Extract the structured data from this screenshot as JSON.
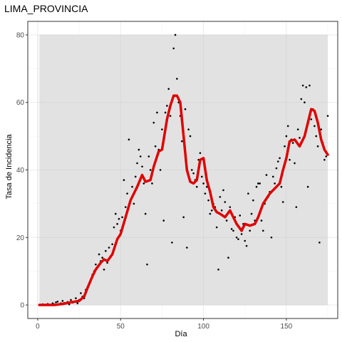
{
  "chart_data": {
    "type": "scatter",
    "title": "LIMA_PROVINCIA",
    "xlabel": "Día",
    "ylabel": "Tasa de Incidencia",
    "xlim": [
      -6,
      181
    ],
    "ylim": [
      -4,
      84
    ],
    "xticks": [
      0,
      50,
      100,
      150
    ],
    "yticks": [
      0,
      20,
      40,
      60,
      80
    ],
    "grid": true,
    "legend": "none",
    "colors": {
      "points": "#000000",
      "smooth": "#e00000",
      "band": "#e0e0e0",
      "panel_border": "#333333",
      "grid": "#ebebeb"
    },
    "band": {
      "x": [
        1,
        175
      ],
      "y": [
        0,
        80
      ]
    },
    "points": {
      "x": [
        1,
        2,
        3,
        4,
        5,
        6,
        7,
        8,
        9,
        10,
        11,
        12,
        13,
        14,
        15,
        16,
        17,
        18,
        19,
        20,
        21,
        22,
        23,
        24,
        25,
        26,
        27,
        28,
        29,
        30,
        31,
        32,
        33,
        34,
        35,
        36,
        37,
        38,
        39,
        40,
        41,
        42,
        43,
        44,
        45,
        46,
        47,
        48,
        49,
        50,
        51,
        52,
        53,
        54,
        55,
        56,
        57,
        58,
        59,
        60,
        61,
        62,
        63,
        64,
        65,
        66,
        67,
        68,
        69,
        70,
        71,
        72,
        73,
        74,
        75,
        76,
        77,
        78,
        79,
        80,
        81,
        82,
        83,
        84,
        85,
        86,
        87,
        88,
        89,
        90,
        91,
        92,
        93,
        94,
        95,
        96,
        97,
        98,
        99,
        100,
        101,
        102,
        103,
        104,
        105,
        106,
        107,
        108,
        109,
        110,
        111,
        112,
        113,
        114,
        115,
        116,
        117,
        118,
        119,
        120,
        121,
        122,
        123,
        124,
        125,
        126,
        127,
        128,
        129,
        130,
        131,
        132,
        133,
        134,
        135,
        136,
        137,
        138,
        139,
        140,
        141,
        142,
        143,
        144,
        145,
        146,
        147,
        148,
        149,
        150,
        151,
        152,
        153,
        154,
        155,
        156,
        157,
        158,
        159,
        160,
        161,
        162,
        163,
        164,
        165,
        166,
        167,
        168,
        169,
        170,
        171,
        172,
        173,
        174,
        175
      ],
      "y": [
        0,
        0,
        0.2,
        0,
        0,
        0.3,
        0.1,
        0,
        0.5,
        0.2,
        0.8,
        1.0,
        0.3,
        0.5,
        1.2,
        0.6,
        0.4,
        0.9,
        0.2,
        1.5,
        0.7,
        1.0,
        2.0,
        0.5,
        1.5,
        3.5,
        2.5,
        2.0,
        4.5,
        5.0,
        6.0,
        7.5,
        9.0,
        10.0,
        12.0,
        11.0,
        15.0,
        13.0,
        14.0,
        10.5,
        16.0,
        12.5,
        17.0,
        14.5,
        18.0,
        23.0,
        27.0,
        24.0,
        25.5,
        22.0,
        26.0,
        37.0,
        29.0,
        33.0,
        49.0,
        31.0,
        35.0,
        30.0,
        38.0,
        42.0,
        46.0,
        44.0,
        41.0,
        36.0,
        27.0,
        12.0,
        44.0,
        40.0,
        36.0,
        54.0,
        47.0,
        57.0,
        46.0,
        40.0,
        52.0,
        25.0,
        57.0,
        59.0,
        64.0,
        56.0,
        18.5,
        76.0,
        80.0,
        67.0,
        60.0,
        56.0,
        48.5,
        26.0,
        58.0,
        17.0,
        52.0,
        50.0,
        40.0,
        39.0,
        37.0,
        35.0,
        43.0,
        45.0,
        38.0,
        36.0,
        33.0,
        35.0,
        31.0,
        27.0,
        28.0,
        30.0,
        29.0,
        23.0,
        10.5,
        32.0,
        28.0,
        34.0,
        30.5,
        25.0,
        14.0,
        29.0,
        22.5,
        22.0,
        26.0,
        20.0,
        19.5,
        26.5,
        21.0,
        24.0,
        19.0,
        17.5,
        33.0,
        22.0,
        27.0,
        31.0,
        25.0,
        35.0,
        36.0,
        36.0,
        25.0,
        22.0,
        30.0,
        38.5,
        32.0,
        33.5,
        20.0,
        38.0,
        36.0,
        40.5,
        42.5,
        43.5,
        35.0,
        30.5,
        47.0,
        50.0,
        53.0,
        43.0,
        49.0,
        48.0,
        42.0,
        29.0,
        52.0,
        49.5,
        61.0,
        65.0,
        60.0,
        64.5,
        35.0,
        65.0,
        55.0,
        58.0,
        53.0,
        50.0,
        47.0,
        18.5,
        52.0,
        48.0,
        43.0,
        44.0,
        56.0
      ],
      "color": "#000000"
    },
    "smooth": {
      "x": [
        1,
        5,
        10,
        15,
        20,
        25,
        28,
        30,
        33,
        35,
        38,
        40,
        42,
        45,
        48,
        50,
        53,
        56,
        60,
        63,
        65,
        68,
        70,
        73,
        75,
        78,
        80,
        82,
        84,
        86,
        88,
        90,
        92,
        94,
        96,
        98,
        100,
        102,
        104,
        106,
        108,
        110,
        113,
        116,
        120,
        123,
        125,
        128,
        131,
        133,
        136,
        140,
        143,
        146,
        148,
        150,
        152,
        155,
        158,
        161,
        163,
        165,
        167,
        169,
        171,
        173,
        175
      ],
      "y": [
        0,
        0,
        0,
        0.3,
        0.8,
        1.2,
        2.5,
        5.0,
        8.5,
        10.5,
        12.5,
        13.5,
        13.0,
        15.0,
        19.5,
        21.0,
        26.0,
        31.0,
        35.0,
        38.5,
        36.5,
        37.0,
        41.0,
        45.5,
        46.0,
        55.0,
        59.0,
        62.0,
        62.0,
        60.0,
        50.0,
        40.0,
        36.5,
        36.0,
        37.0,
        43.0,
        43.5,
        37.0,
        33.5,
        29.0,
        27.5,
        27.0,
        26.0,
        28.0,
        24.0,
        22.0,
        24.0,
        23.5,
        24.0,
        26.0,
        30.0,
        33.0,
        34.5,
        36.0,
        40.0,
        43.5,
        48.5,
        49.0,
        47.0,
        50.0,
        54.0,
        58.0,
        57.5,
        54.0,
        49.0,
        46.0,
        44.5
      ],
      "color": "#e00000"
    },
    "xlabel_unused": ""
  }
}
